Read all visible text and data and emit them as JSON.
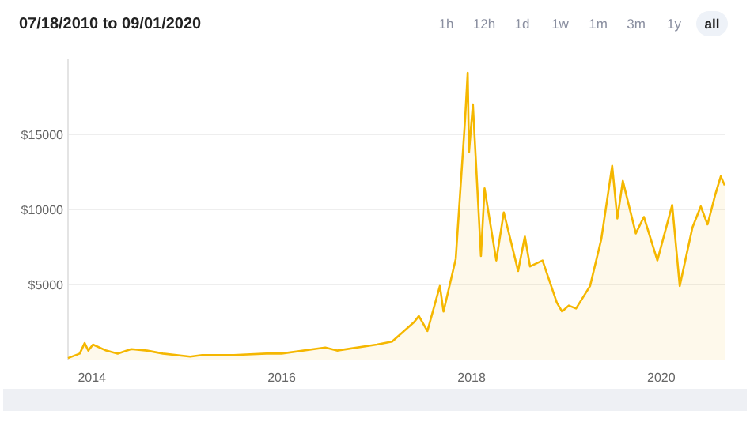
{
  "chart_data": {
    "type": "area",
    "title": "07/18/2010 to 09/01/2020",
    "annotations": [
      "1h",
      "12h",
      "1d",
      "1w",
      "1m",
      "3m",
      "1y",
      "all"
    ],
    "x": [
      "2013-10-01",
      "2013-11-15",
      "2013-12-04",
      "2013-12-18",
      "2014-01-05",
      "2014-02-25",
      "2014-04-10",
      "2014-06-01",
      "2014-08-01",
      "2014-10-01",
      "2015-01-14",
      "2015-03-01",
      "2015-07-01",
      "2015-11-04",
      "2016-01-01",
      "2016-06-17",
      "2016-08-01",
      "2017-01-01",
      "2017-03-01",
      "2017-05-25",
      "2017-06-12",
      "2017-07-15",
      "2017-09-01",
      "2017-09-15",
      "2017-11-01",
      "2017-12-07",
      "2017-12-17",
      "2017-12-22",
      "2018-01-06",
      "2018-02-06",
      "2018-02-20",
      "2018-04-06",
      "2018-05-05",
      "2018-06-29",
      "2018-07-25",
      "2018-08-14",
      "2018-10-01",
      "2018-11-25",
      "2018-12-15",
      "2019-01-10",
      "2019-02-07",
      "2019-04-02",
      "2019-05-15",
      "2019-06-26",
      "2019-07-16",
      "2019-08-06",
      "2019-09-25",
      "2019-10-26",
      "2019-12-17",
      "2020-02-12",
      "2020-03-12",
      "2020-04-30",
      "2020-06-01",
      "2020-06-27",
      "2020-07-27",
      "2020-08-17",
      "2020-09-01"
    ],
    "series": [
      {
        "color": "#f5b700",
        "values": [
          100,
          400,
          1100,
          600,
          1000,
          600,
          400,
          700,
          600,
          400,
          200,
          300,
          300,
          400,
          400,
          800,
          600,
          1000,
          1200,
          2500,
          2900,
          1900,
          4900,
          3200,
          6700,
          16000,
          19100,
          13800,
          17000,
          6900,
          11400,
          6600,
          9800,
          5900,
          8200,
          6200,
          6600,
          3800,
          3200,
          3600,
          3400,
          4900,
          8000,
          12900,
          9400,
          11900,
          8400,
          9500,
          6600,
          10300,
          4900,
          8800,
          10200,
          9000,
          11000,
          12200,
          11600
        ]
      }
    ],
    "xlim": [
      "2013-10-01",
      "2020-09-01"
    ],
    "xticks": [
      {
        "value": "2014-01-01",
        "label": "2014"
      },
      {
        "value": "2016-01-01",
        "label": "2016"
      },
      {
        "value": "2018-01-01",
        "label": "2018"
      },
      {
        "value": "2020-01-01",
        "label": "2020"
      }
    ],
    "ylim": [
      0,
      20000
    ],
    "yticks": [
      {
        "value": 5000,
        "label": "$5000"
      },
      {
        "value": 10000,
        "label": "$10000"
      },
      {
        "value": 15000,
        "label": "$15000"
      }
    ],
    "grid": "y",
    "marker": "none",
    "line_style": "solid"
  }
}
